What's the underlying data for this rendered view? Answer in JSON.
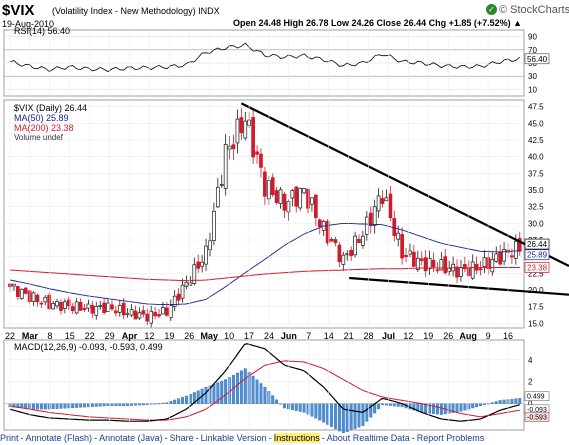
{
  "header": {
    "symbol": "$VIX",
    "name": "(Volatility Index - New Methodology)",
    "exchange": "INDX",
    "date": "19-Aug-2010",
    "ohlc_text": "Open 24.48  High 26.78  Low 24.26  Close 26.44  Chg +1.85 (+7.52%) ▲",
    "brand": "© StockCharts.com"
  },
  "rsi": {
    "label": "RSI(14) 56.40",
    "value_label": "56.40",
    "ticks": [
      "90",
      "70",
      "50",
      "30",
      "10"
    ],
    "ylim": [
      0,
      100
    ]
  },
  "price": {
    "label": "$VIX (Daily) 26.44",
    "ma50_label": "MA(50) 25.89",
    "ma200_label": "MA(200) 23.38",
    "volume_label": "Volume undef",
    "ticks": [
      "47.5",
      "45.0",
      "42.5",
      "40.0",
      "37.5",
      "35.0",
      "32.5",
      "30.0",
      "27.5",
      "25.0",
      "22.5",
      "20.0",
      "17.5",
      "15.0"
    ],
    "last_tags": [
      "26.44",
      "25.89",
      "23.38"
    ]
  },
  "xaxis": {
    "labels": [
      "22",
      "Mar",
      "8",
      "15",
      "22",
      "29",
      "Apr",
      "12",
      "19",
      "26",
      "May",
      "10",
      "17",
      "24",
      "Jun",
      "7",
      "14",
      "21",
      "28",
      "Jul",
      "12",
      "19",
      "26",
      "Aug",
      "9",
      "16"
    ]
  },
  "macd": {
    "label": "MACD(12,26,9) -0.093, -0.593, 0.499",
    "ticks": [
      "4",
      "2",
      "0"
    ],
    "value_tags": [
      "0.499",
      "-0.093",
      "-0.593"
    ]
  },
  "footer": {
    "links": [
      "Print",
      "Annotate (Flash)",
      "Annotate (Java)",
      "Share",
      "Linkable Version",
      "Instructions",
      "About Realtime Data",
      "Report Problems"
    ]
  },
  "colors": {
    "up": "#1a1a1a",
    "down": "#d11a2a",
    "ma50": "#20208e",
    "ma200": "#d11a2a",
    "rsi_line": "#000000",
    "rsi_fill": "#1e8b3a",
    "hist": "#4a90d9",
    "signal": "#d11a2a"
  },
  "chart_data": [
    {
      "type": "line",
      "title": "RSI(14) 56.40",
      "ylim": [
        0,
        100
      ],
      "reference_lines": [
        70,
        30
      ],
      "x": [
        "Feb-22",
        "Mar-01",
        "Mar-08",
        "Mar-15",
        "Mar-22",
        "Mar-29",
        "Apr-05",
        "Apr-12",
        "Apr-19",
        "Apr-26",
        "May-03",
        "May-10",
        "May-17",
        "May-24",
        "Jun-01",
        "Jun-07",
        "Jun-14",
        "Jun-21",
        "Jun-28",
        "Jul-06",
        "Jul-12",
        "Jul-19",
        "Jul-26",
        "Aug-02",
        "Aug-09",
        "Aug-16",
        "Aug-19"
      ],
      "series": [
        {
          "name": "RSI(14)",
          "values": [
            52,
            45,
            40,
            44,
            41,
            40,
            42,
            43,
            44,
            47,
            66,
            73,
            77,
            62,
            59,
            61,
            55,
            46,
            50,
            64,
            52,
            50,
            46,
            44,
            45,
            52,
            56.4
          ]
        }
      ]
    },
    {
      "type": "line",
      "title": "$VIX (Daily) 26.44",
      "ylim": [
        15,
        48
      ],
      "x": [
        "Feb-22",
        "Mar-01",
        "Mar-08",
        "Mar-15",
        "Mar-22",
        "Mar-29",
        "Apr-05",
        "Apr-12",
        "Apr-19",
        "Apr-26",
        "May-03",
        "May-10",
        "May-17",
        "May-24",
        "Jun-01",
        "Jun-07",
        "Jun-14",
        "Jun-21",
        "Jun-28",
        "Jul-06",
        "Jul-12",
        "Jul-19",
        "Jul-26",
        "Aug-02",
        "Aug-09",
        "Aug-16",
        "Aug-19"
      ],
      "series": [
        {
          "name": "$VIX Close",
          "values": [
            20.5,
            19.0,
            17.9,
            17.6,
            17.2,
            17.4,
            16.6,
            16.0,
            16.8,
            21.0,
            25.5,
            40.5,
            45.8,
            35.6,
            33.0,
            34.8,
            29.0,
            24.5,
            28.5,
            34.5,
            25.5,
            24.0,
            23.5,
            22.8,
            23.5,
            25.0,
            26.44
          ]
        },
        {
          "name": "MA(50) 25.89",
          "values": [
            21.5,
            20.9,
            20.2,
            19.6,
            19.1,
            18.7,
            18.3,
            17.9,
            17.8,
            17.9,
            18.6,
            20.5,
            22.6,
            24.6,
            26.7,
            28.4,
            29.6,
            30.0,
            29.9,
            29.8,
            29.0,
            28.0,
            27.0,
            26.4,
            25.8,
            25.7,
            25.89
          ]
        },
        {
          "name": "MA(200) 23.38",
          "values": [
            23.0,
            22.8,
            22.6,
            22.4,
            22.2,
            22.0,
            21.8,
            21.6,
            21.5,
            21.4,
            21.5,
            21.8,
            22.1,
            22.4,
            22.6,
            22.8,
            22.9,
            23.0,
            23.1,
            23.2,
            23.2,
            23.3,
            23.3,
            23.35,
            23.36,
            23.37,
            23.38
          ]
        }
      ],
      "annotations": [
        "Descending trendline from the May peak",
        "Lower trendline from late June"
      ]
    },
    {
      "type": "line",
      "title": "MACD(12,26,9) -0.093, -0.593, 0.499",
      "x": [
        "Feb-22",
        "Mar-01",
        "Mar-08",
        "Mar-15",
        "Mar-22",
        "Mar-29",
        "Apr-05",
        "Apr-12",
        "Apr-19",
        "Apr-26",
        "May-03",
        "May-10",
        "May-17",
        "May-24",
        "Jun-01",
        "Jun-07",
        "Jun-14",
        "Jun-21",
        "Jun-28",
        "Jul-06",
        "Jul-12",
        "Jul-19",
        "Jul-26",
        "Aug-02",
        "Aug-09",
        "Aug-16",
        "Aug-19"
      ],
      "series": [
        {
          "name": "MACD",
          "values": [
            -0.5,
            -1.0,
            -1.3,
            -1.4,
            -1.5,
            -1.5,
            -1.6,
            -1.6,
            -1.4,
            -0.5,
            1.0,
            3.0,
            5.5,
            5.0,
            3.5,
            3.0,
            1.5,
            -0.5,
            -0.8,
            0.5,
            0.0,
            -0.8,
            -1.4,
            -1.6,
            -1.4,
            -0.6,
            -0.093
          ]
        },
        {
          "name": "Signal",
          "values": [
            -0.2,
            -0.5,
            -0.8,
            -1.0,
            -1.2,
            -1.3,
            -1.4,
            -1.5,
            -1.5,
            -1.2,
            -0.5,
            0.8,
            2.3,
            3.5,
            3.9,
            3.8,
            3.2,
            2.2,
            1.2,
            0.6,
            0.3,
            0.0,
            -0.4,
            -0.9,
            -1.2,
            -0.9,
            -0.593
          ]
        },
        {
          "name": "Histogram",
          "values": [
            -0.3,
            -0.5,
            -0.5,
            -0.4,
            -0.3,
            -0.2,
            -0.2,
            -0.1,
            0.1,
            0.7,
            1.5,
            2.2,
            3.2,
            1.5,
            -0.4,
            -0.8,
            -1.7,
            -2.7,
            -2.0,
            -0.1,
            -0.3,
            -0.8,
            -1.0,
            -0.7,
            -0.2,
            0.3,
            0.499
          ]
        }
      ]
    }
  ]
}
